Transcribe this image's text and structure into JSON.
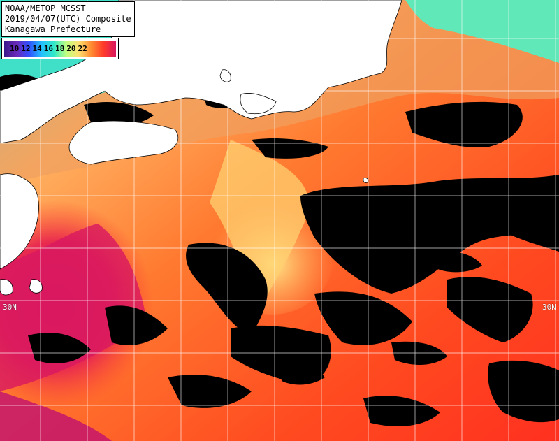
{
  "title": {
    "line1": "NOAA/METOP MCSST",
    "line2": "2019/04/07(UTC) Composite",
    "line3": "Kanagawa Prefecture"
  },
  "legend": {
    "ticks": [
      "10",
      "12",
      "14",
      "16",
      "18",
      "20",
      "22"
    ],
    "gradient_colors": [
      "#3a1a8a",
      "#6a2ab8",
      "#3050ff",
      "#22c0ff",
      "#30e8c8",
      "#c0ff80",
      "#ffe070",
      "#ff8c30",
      "#ff3a2a",
      "#d81860"
    ]
  },
  "lat_labels": {
    "left": "30N",
    "right": "30N"
  },
  "colors": {
    "land": "#ffffff",
    "cloud": "#000000",
    "grid": "#ffffff"
  }
}
